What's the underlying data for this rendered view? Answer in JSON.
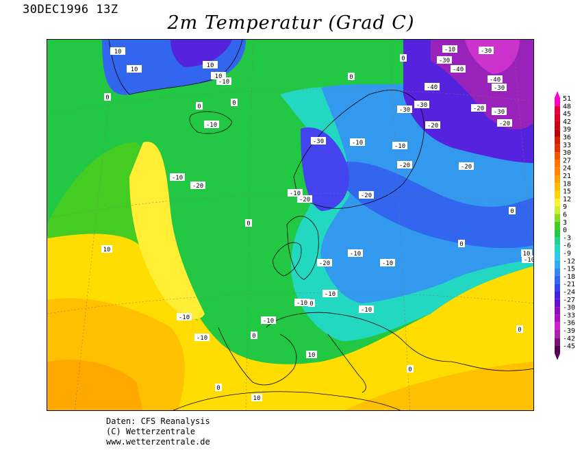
{
  "header": {
    "datestamp": "30DEC1996 13Z",
    "title": "2m Temperatur (Grad C)"
  },
  "legend": {
    "values": [
      "51",
      "48",
      "45",
      "42",
      "39",
      "36",
      "33",
      "30",
      "27",
      "24",
      "21",
      "18",
      "15",
      "12",
      "9",
      "6",
      "3",
      "0",
      "-3",
      "-6",
      "-9",
      "-12",
      "-15",
      "-18",
      "-21",
      "-24",
      "-27",
      "-30",
      "-33",
      "-36",
      "-39",
      "-42",
      "-45"
    ],
    "colors": [
      "#ff00cc",
      "#e8003a",
      "#d9002a",
      "#c8001a",
      "#b8000a",
      "#cc2200",
      "#dd3300",
      "#ee5500",
      "#ff7700",
      "#ff8800",
      "#ffa000",
      "#ffbb00",
      "#ffd400",
      "#fff030",
      "#ccee33",
      "#88dd22",
      "#44cc22",
      "#22c844",
      "#22d090",
      "#22d8c0",
      "#30c8ee",
      "#30aaee",
      "#3388ee",
      "#3366ee",
      "#3344ee",
      "#4422dd",
      "#6611cc",
      "#8811bb",
      "#aa11bb",
      "#cc22cc",
      "#aa22aa",
      "#771177",
      "#550055"
    ]
  },
  "map": {
    "contour_labels": [
      {
        "text": "-10",
        "region": "greenland-north"
      },
      {
        "text": "-20",
        "region": "greenland-east"
      },
      {
        "text": "-20",
        "region": "svalbard"
      },
      {
        "text": "-10",
        "region": "svalbard"
      },
      {
        "text": "-10",
        "region": "svalbard"
      },
      {
        "text": "0",
        "region": "greenland-south"
      },
      {
        "text": "0",
        "region": "norwegian-sea"
      },
      {
        "text": "0",
        "region": "iceland-north"
      },
      {
        "text": "0",
        "region": "iceland-east"
      },
      {
        "text": "-10",
        "region": "iceland"
      },
      {
        "text": "0",
        "region": "iceland-south"
      },
      {
        "text": "-10",
        "region": "barents"
      },
      {
        "text": "-30",
        "region": "novaya-zemlya"
      },
      {
        "text": "-30",
        "region": "kara"
      },
      {
        "text": "-40",
        "region": "novaya-zemlya"
      },
      {
        "text": "-40",
        "region": "novaya-zemlya"
      },
      {
        "text": "-40",
        "region": "novaya-zemlya"
      },
      {
        "text": "-30",
        "region": "urals-north"
      },
      {
        "text": "-30",
        "region": "arctic-russia"
      },
      {
        "text": "-20",
        "region": "arctic-russia"
      },
      {
        "text": "-30",
        "region": "urals"
      },
      {
        "text": "-20",
        "region": "kola"
      },
      {
        "text": "-20",
        "region": "russia-north"
      },
      {
        "text": "-30",
        "region": "russia-ne"
      },
      {
        "text": "-30",
        "region": "russia-ne"
      },
      {
        "text": "-10",
        "region": "finland"
      },
      {
        "text": "-10",
        "region": "russia-nw"
      },
      {
        "text": "-20",
        "region": "norway"
      },
      {
        "text": "-20",
        "region": "sweden"
      },
      {
        "text": "-10",
        "region": "russia-center"
      },
      {
        "text": "-20",
        "region": "baltic"
      },
      {
        "text": "-20",
        "region": "russia-mid"
      },
      {
        "text": "-10",
        "region": "southern-norway"
      },
      {
        "text": "0",
        "region": "skagerrak"
      },
      {
        "text": "-20",
        "region": "latvia"
      },
      {
        "text": "10",
        "region": "atlantic"
      },
      {
        "text": "0",
        "region": "north-sea"
      },
      {
        "text": "0",
        "region": "ireland"
      },
      {
        "text": "10",
        "region": "atlantic-west"
      },
      {
        "text": "-10",
        "region": "russia-east"
      },
      {
        "text": "-20",
        "region": "russia-south"
      },
      {
        "text": "-10",
        "region": "germany"
      },
      {
        "text": "-10",
        "region": "poland"
      },
      {
        "text": "-10",
        "region": "ukraine"
      },
      {
        "text": "-10",
        "region": "kazakhstan"
      },
      {
        "text": "0",
        "region": "caspian"
      },
      {
        "text": "-10",
        "region": "alps"
      },
      {
        "text": "-10",
        "region": "alps-east"
      },
      {
        "text": "-10",
        "region": "austria"
      },
      {
        "text": "-10",
        "region": "romania"
      },
      {
        "text": "0",
        "region": "bay-of-biscay"
      },
      {
        "text": "10",
        "region": "iberia-west"
      },
      {
        "text": "0",
        "region": "france-south"
      },
      {
        "text": "0",
        "region": "pyrenees"
      },
      {
        "text": "0",
        "region": "iberia-north"
      },
      {
        "text": "10",
        "region": "sardinia"
      },
      {
        "text": "10",
        "region": "aegean"
      },
      {
        "text": "10",
        "region": "turkey"
      },
      {
        "text": "10",
        "region": "morocco"
      },
      {
        "text": "10",
        "region": "algeria"
      }
    ]
  },
  "footer": {
    "line1": "Daten: CFS Reanalysis",
    "line2": "(C) Wetterzentrale",
    "line3": "www.wetterzentrale.de"
  }
}
